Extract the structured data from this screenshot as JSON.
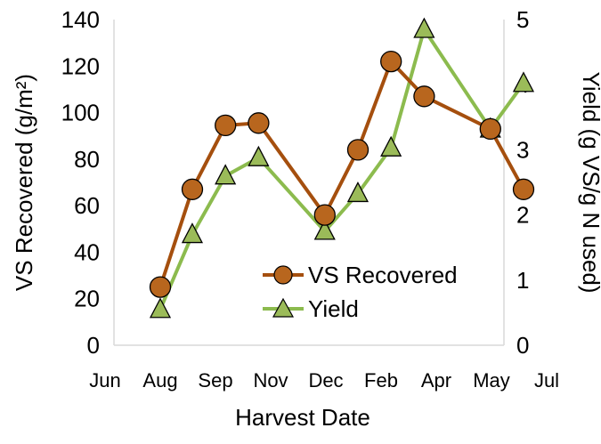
{
  "chart_data": {
    "type": "line",
    "title": "",
    "xlabel": "Harvest Date",
    "ylabel": "VS Recovered (g/m²)",
    "y2label": "Yield (g VS/g N used)",
    "x_tick_labels": [
      "Jun",
      "Aug",
      "Sep",
      "Nov",
      "Dec",
      "Feb",
      "Apr",
      "May",
      "Jul"
    ],
    "ylim": [
      0,
      140
    ],
    "yticks": [
      0,
      20,
      40,
      60,
      80,
      100,
      120,
      140
    ],
    "y2lim": [
      0,
      5
    ],
    "y2ticks": [
      0,
      1,
      2,
      3,
      4,
      5
    ],
    "grid": false,
    "legend_position": "bottom-right",
    "series": [
      {
        "name": "VS Recovered",
        "axis": "left",
        "marker": "circle",
        "color": "#A54F0E",
        "fill": "#B8661E",
        "x": [
          1.0,
          1.58,
          2.18,
          2.78,
          3.98,
          4.58,
          5.18,
          5.78,
          6.98,
          7.58
        ],
        "values": [
          25,
          67,
          94.5,
          95.5,
          56,
          84,
          122,
          107,
          93,
          67
        ]
      },
      {
        "name": "Yield",
        "axis": "right",
        "marker": "triangle",
        "color": "#8CBB4E",
        "fill": "#9BBB59",
        "x": [
          1.0,
          1.58,
          2.18,
          2.78,
          3.98,
          4.58,
          5.18,
          5.78,
          6.98,
          7.58
        ],
        "values": [
          0.55,
          1.7,
          2.6,
          2.88,
          1.75,
          2.33,
          3.03,
          4.85,
          3.32,
          4.02
        ]
      }
    ]
  }
}
